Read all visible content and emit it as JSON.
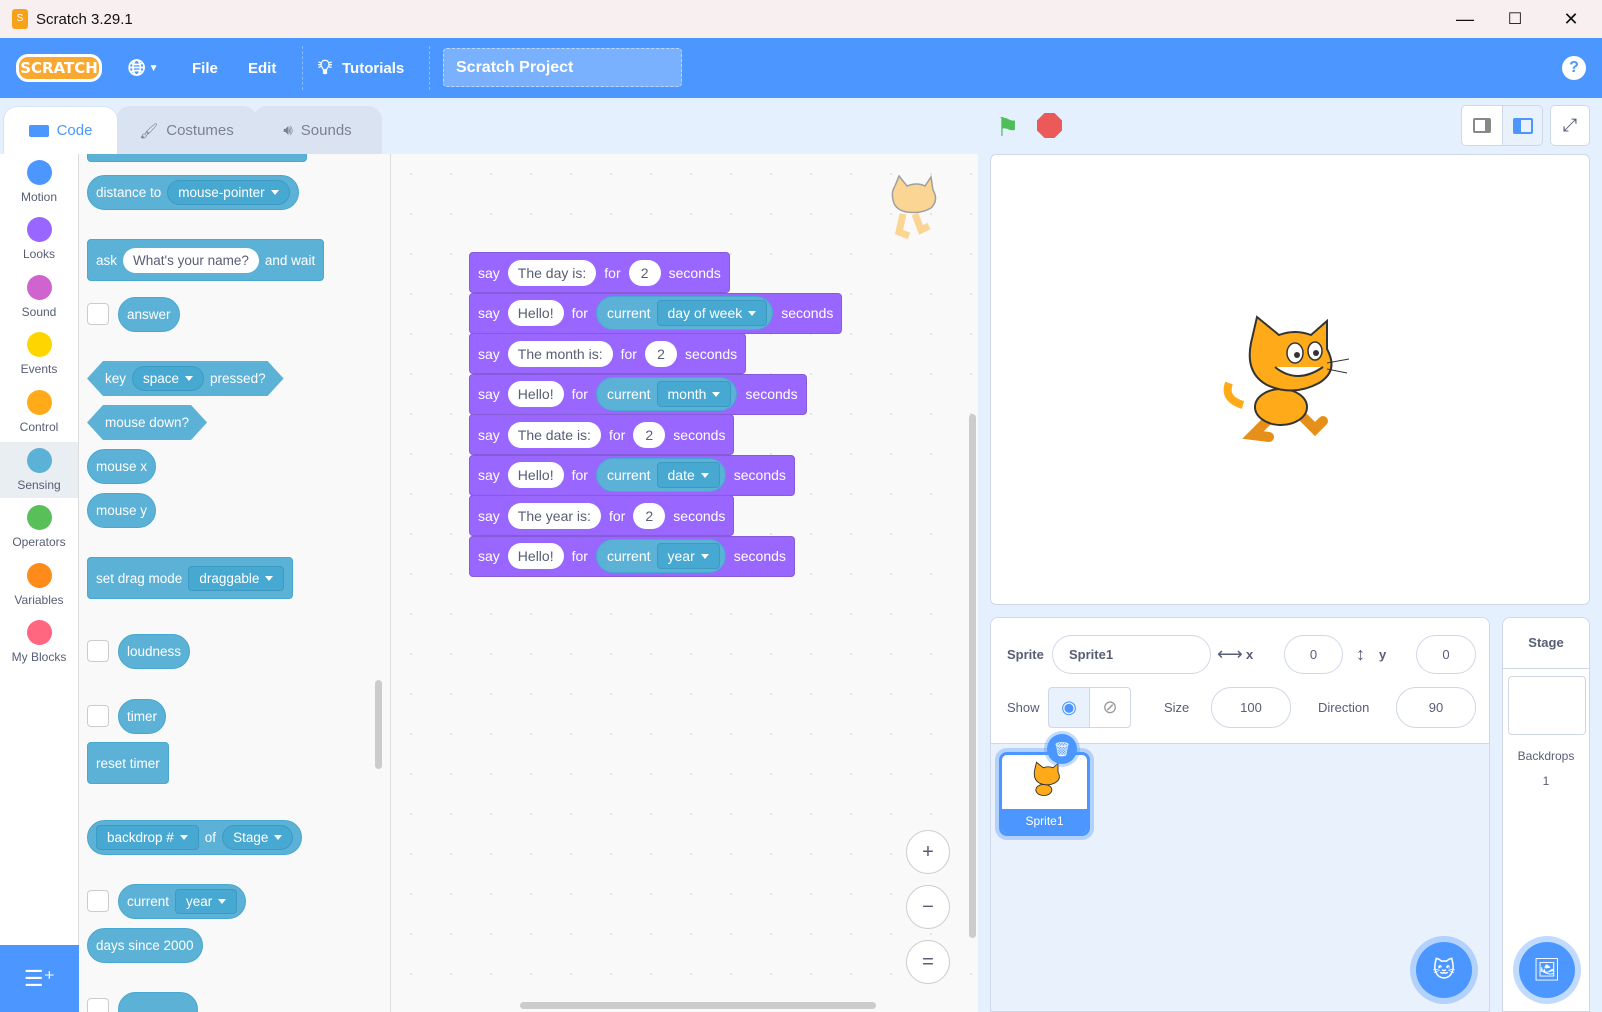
{
  "window": {
    "title": "Scratch 3.29.1",
    "minimize": "—",
    "maximize": "☐",
    "close": "✕"
  },
  "menu": {
    "logo": "SCRATCH",
    "file": "File",
    "edit": "Edit",
    "tutorials": "Tutorials",
    "project_title": "Scratch Project",
    "help": "?"
  },
  "tabs": [
    {
      "label": "Code"
    },
    {
      "label": "Costumes"
    },
    {
      "label": "Sounds"
    }
  ],
  "categories": [
    {
      "label": "Motion",
      "color": "#4c97ff"
    },
    {
      "label": "Looks",
      "color": "#9966ff"
    },
    {
      "label": "Sound",
      "color": "#cf63cf"
    },
    {
      "label": "Events",
      "color": "#ffd500"
    },
    {
      "label": "Control",
      "color": "#ffab19"
    },
    {
      "label": "Sensing",
      "color": "#5cb1d6"
    },
    {
      "label": "Operators",
      "color": "#59c059"
    },
    {
      "label": "Variables",
      "color": "#ff8c1a"
    },
    {
      "label": "My Blocks",
      "color": "#ff6680"
    }
  ],
  "palette": {
    "distance_to": "distance to",
    "mouse_pointer": "mouse-pointer",
    "ask": "ask",
    "ask_default": "What's your name?",
    "and_wait": "and wait",
    "answer": "answer",
    "key": "key",
    "space": "space",
    "pressed": "pressed?",
    "mouse_down": "mouse down?",
    "mouse_x": "mouse x",
    "mouse_y": "mouse y",
    "set_drag_mode": "set drag mode",
    "draggable": "draggable",
    "loudness": "loudness",
    "timer": "timer",
    "reset_timer": "reset timer",
    "backdrop_num": "backdrop #",
    "of": "of",
    "stage": "Stage",
    "current": "current",
    "year": "year",
    "days_since_2000": "days since 2000"
  },
  "script": [
    {
      "say": "say",
      "text": "The day is:",
      "for": "for",
      "secs": "2",
      "seconds": "seconds"
    },
    {
      "say": "say",
      "text": "Hello!",
      "for": "for",
      "current": "current",
      "menu": "day of week",
      "seconds": "seconds"
    },
    {
      "say": "say",
      "text": "The month is:",
      "for": "for",
      "secs": "2",
      "seconds": "seconds"
    },
    {
      "say": "say",
      "text": "Hello!",
      "for": "for",
      "current": "current",
      "menu": "month",
      "seconds": "seconds"
    },
    {
      "say": "say",
      "text": "The date is:",
      "for": "for",
      "secs": "2",
      "seconds": "seconds"
    },
    {
      "say": "say",
      "text": "Hello!",
      "for": "for",
      "current": "current",
      "menu": "date",
      "seconds": "seconds"
    },
    {
      "say": "say",
      "text": "The year is:",
      "for": "for",
      "secs": "2",
      "seconds": "seconds"
    },
    {
      "say": "say",
      "text": "Hello!",
      "for": "for",
      "current": "current",
      "menu": "year",
      "seconds": "seconds"
    }
  ],
  "zoom": {
    "in": "+",
    "out": "−",
    "reset": "="
  },
  "sprite_info": {
    "sprite_label": "Sprite",
    "sprite_name": "Sprite1",
    "x_label": "x",
    "x": "0",
    "y_label": "y",
    "y": "0",
    "show_label": "Show",
    "size_label": "Size",
    "size": "100",
    "direction_label": "Direction",
    "direction": "90"
  },
  "sprites": [
    {
      "name": "Sprite1",
      "selected": true
    }
  ],
  "stage_panel": {
    "label": "Stage",
    "backdrops_label": "Backdrops",
    "backdrops_count": "1"
  }
}
